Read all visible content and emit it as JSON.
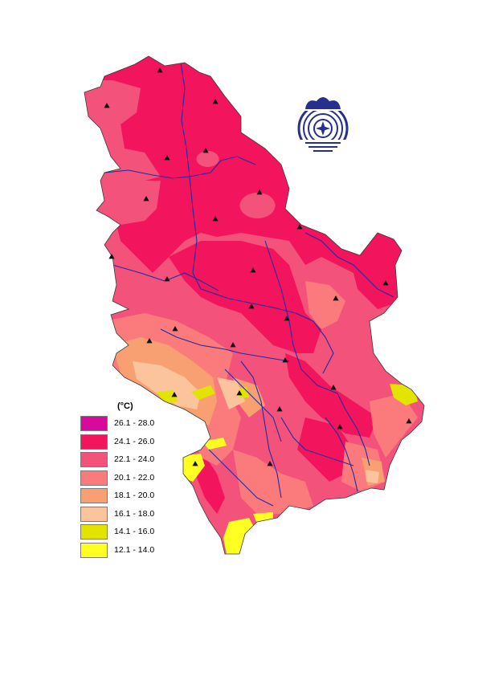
{
  "map": {
    "colors": {
      "c26_28": "#d80a9e",
      "c24_26": "#f2145c",
      "c22_24": "#f3527a",
      "c20_22": "#fb7b7c",
      "c18_20": "#f9a072",
      "c16_18": "#fcc49c",
      "c14_16": "#e3e300",
      "c12_14": "#ffff21",
      "river": "#1f2ca0",
      "border": "#3a3a3a"
    }
  },
  "logo": {
    "icon": "meteorological-service-emblem",
    "color": "#26308c"
  },
  "legend": {
    "unit": "(°C)",
    "items": [
      {
        "label": "26.1 - 28.0",
        "color": "#d80a9e"
      },
      {
        "label": "24.1 - 26.0",
        "color": "#f2145c"
      },
      {
        "label": "22.1 - 24.0",
        "color": "#f3527a"
      },
      {
        "label": "20.1 - 22.0",
        "color": "#fb7b7c"
      },
      {
        "label": "18.1 - 20.0",
        "color": "#f9a072"
      },
      {
        "label": "16.1 - 18.0",
        "color": "#fcc49c"
      },
      {
        "label": "14.1 - 16.0",
        "color": "#e3e300"
      },
      {
        "label": "12.1 - 14.0",
        "color": "#ffff21"
      }
    ]
  },
  "stations": {
    "count": 28,
    "marker": "triangle-marker"
  }
}
